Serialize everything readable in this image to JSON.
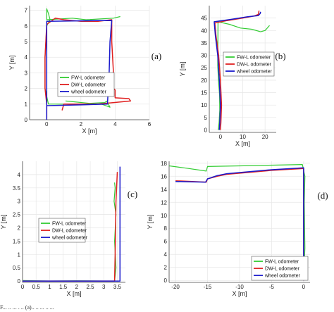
{
  "caption": "F... .. ... . .. (a)..  .. ... .. ...",
  "colors": {
    "fw": "#33cc33",
    "dw": "#e02020",
    "wheel": "#1a1acc",
    "grid": "#e6e6e6",
    "axis": "#444444"
  },
  "chart_data": [
    {
      "type": "line",
      "panel": "(a)",
      "xlabel": "X [m]",
      "ylabel": "Y [m]",
      "xlim": [
        -1,
        6
      ],
      "ylim": [
        0,
        7.3
      ],
      "xticks": [
        0,
        2,
        4,
        6
      ],
      "yticks": [
        0,
        1,
        2,
        3,
        4,
        5,
        6,
        7
      ],
      "grid": true,
      "legend_position": "center",
      "series": [
        {
          "name": "FW-L odometer",
          "color": "#33cc33",
          "x": [
            1.1,
            2.5,
            3.4,
            3.5,
            3.7,
            3.2,
            0.1,
            -0.1,
            -0.1,
            0.0,
            0.2,
            0.1,
            0.0,
            0.0,
            1.5,
            2.3,
            3.9,
            4.3
          ],
          "y": [
            1.2,
            1.05,
            1.1,
            1.2,
            0.8,
            1.0,
            1.0,
            2.0,
            4.0,
            6.0,
            6.4,
            6.8,
            7.1,
            6.4,
            6.5,
            6.4,
            6.5,
            6.6
          ]
        },
        {
          "name": "DW-L odometer",
          "color": "#e02020",
          "x": [
            0.0,
            0.0,
            0.0,
            -0.1,
            -0.1,
            0.0,
            0.5,
            1.0,
            2.0,
            3.0,
            3.8,
            3.8,
            3.9,
            3.9,
            4.0,
            4.0,
            4.8,
            4.9,
            3.0,
            1.0,
            0.9
          ],
          "y": [
            0.0,
            0.5,
            1.0,
            2.0,
            4.0,
            6.1,
            6.5,
            6.4,
            6.3,
            6.3,
            6.4,
            5.0,
            3.0,
            2.0,
            1.9,
            1.4,
            1.35,
            1.2,
            1.0,
            1.0,
            0.6
          ]
        },
        {
          "name": "wheel odometer",
          "color": "#1a1acc",
          "x": [
            0.0,
            0.0,
            0.0,
            0.0,
            0.0,
            1.5,
            3.0,
            3.8,
            3.7,
            3.65,
            3.6,
            3.55,
            2.0,
            0.0
          ],
          "y": [
            0.0,
            0.8,
            2.0,
            4.0,
            6.3,
            6.32,
            6.34,
            6.35,
            5.0,
            3.0,
            2.0,
            1.0,
            0.95,
            0.9
          ]
        }
      ]
    },
    {
      "type": "line",
      "panel": "(b)",
      "xlabel": "X [m]",
      "ylabel": "Y [m]",
      "xlim": [
        -5,
        25
      ],
      "ylim": [
        -1,
        50
      ],
      "xticks": [
        0,
        10,
        20
      ],
      "yticks": [
        0,
        5,
        10,
        15,
        20,
        25,
        30,
        35,
        40,
        45
      ],
      "grid": true,
      "legend_position": "center-right",
      "series": [
        {
          "name": "FW-L odometer",
          "color": "#33cc33",
          "x": [
            -1.0,
            -0.6,
            -0.3,
            -0.4,
            -0.9,
            -1.2,
            -1.1,
            4.0,
            9.0,
            14.0,
            18.0,
            20.0,
            22.0
          ],
          "y": [
            0.0,
            3.0,
            8.0,
            14.0,
            20.0,
            26.0,
            43.5,
            42.5,
            41.0,
            40.5,
            39.5,
            40.0,
            42.0
          ]
        },
        {
          "name": "DW-L odometer",
          "color": "#e02020",
          "x": [
            0.0,
            0.2,
            0.5,
            0.0,
            -0.8,
            -2.0,
            -2.5,
            3.0,
            10.0,
            15.0,
            17.0,
            17.3
          ],
          "y": [
            0.0,
            3.0,
            10.0,
            20.0,
            30.0,
            38.0,
            43.0,
            44.0,
            45.0,
            45.8,
            46.5,
            48.0
          ]
        },
        {
          "name": "wheel odometer",
          "color": "#1a1acc",
          "x": [
            -0.5,
            -0.3,
            0.0,
            -0.5,
            -1.2,
            -2.3,
            -2.8,
            5.0,
            12.0,
            17.0,
            17.8,
            18.0
          ],
          "y": [
            0.0,
            3.0,
            10.0,
            20.0,
            30.0,
            38.0,
            43.5,
            44.5,
            45.5,
            46.0,
            46.8,
            47.5
          ]
        }
      ]
    },
    {
      "type": "line",
      "panel": "(c)",
      "xlabel": "X [m]",
      "ylabel": "Y [m]",
      "xlim": [
        0,
        3.8
      ],
      "ylim": [
        -0.05,
        4.5
      ],
      "xticks": [
        0,
        0.5,
        1,
        1.5,
        2,
        2.5,
        3,
        3.5
      ],
      "yticks": [
        0,
        0.5,
        1,
        1.5,
        2,
        2.5,
        3,
        3.5,
        4
      ],
      "grid": true,
      "legend_position": "center-right",
      "series": [
        {
          "name": "FW-L odometer",
          "color": "#33cc33",
          "x": [
            0.0,
            1.0,
            2.0,
            3.0,
            3.4,
            3.45,
            3.4,
            3.45,
            3.38,
            3.42,
            3.4
          ],
          "y": [
            0.02,
            0.0,
            0.01,
            0.0,
            0.0,
            0.5,
            1.5,
            2.5,
            3.0,
            3.5,
            3.7
          ]
        },
        {
          "name": "DW-L odometer",
          "color": "#e02020",
          "x": [
            0.0,
            1.0,
            2.0,
            3.0,
            3.4,
            3.42,
            3.45,
            3.5
          ],
          "y": [
            0.0,
            0.0,
            0.0,
            0.0,
            0.0,
            1.0,
            3.0,
            4.1
          ]
        },
        {
          "name": "wheel odometer",
          "color": "#1a1acc",
          "x": [
            0.0,
            1.0,
            2.0,
            3.0,
            3.6,
            3.6,
            3.6
          ],
          "y": [
            0.0,
            0.0,
            0.0,
            0.0,
            0.0,
            2.0,
            4.3
          ]
        }
      ]
    },
    {
      "type": "line",
      "panel": "(d)",
      "xlabel": "X [m]",
      "ylabel": "Y [m]",
      "xlim": [
        -21,
        1
      ],
      "ylim": [
        -0.3,
        18.3
      ],
      "xticks": [
        -20,
        -15,
        -10,
        -5,
        0
      ],
      "yticks": [
        0,
        2,
        4,
        6,
        8,
        10,
        12,
        14,
        16,
        18
      ],
      "grid": true,
      "legend_position": "bottom-right",
      "series": [
        {
          "name": "FW-L odometer",
          "color": "#33cc33",
          "x": [
            0.0,
            0.2,
            0.1,
            0.2,
            -0.2,
            -10.0,
            -15.0,
            -15.2,
            -18.0,
            -21.0
          ],
          "y": [
            0.0,
            5.0,
            12.0,
            16.0,
            17.8,
            17.6,
            17.5,
            16.8,
            17.2,
            17.6
          ]
        },
        {
          "name": "DW-L odometer",
          "color": "#e02020",
          "x": [
            0.0,
            0.0,
            0.0,
            -5.0,
            -12.0,
            -13.5,
            -15.0,
            -15.2,
            -20.0
          ],
          "y": [
            0.0,
            8.0,
            17.2,
            16.9,
            16.3,
            16.0,
            15.6,
            15.1,
            15.3
          ]
        },
        {
          "name": "wheel odometer",
          "color": "#1a1acc",
          "x": [
            0.0,
            0.0,
            0.0,
            -5.0,
            -12.0,
            -13.5,
            -15.0,
            -15.3,
            -20.0
          ],
          "y": [
            0.0,
            8.0,
            17.3,
            17.0,
            16.4,
            16.1,
            15.6,
            15.1,
            15.2
          ]
        }
      ]
    }
  ]
}
